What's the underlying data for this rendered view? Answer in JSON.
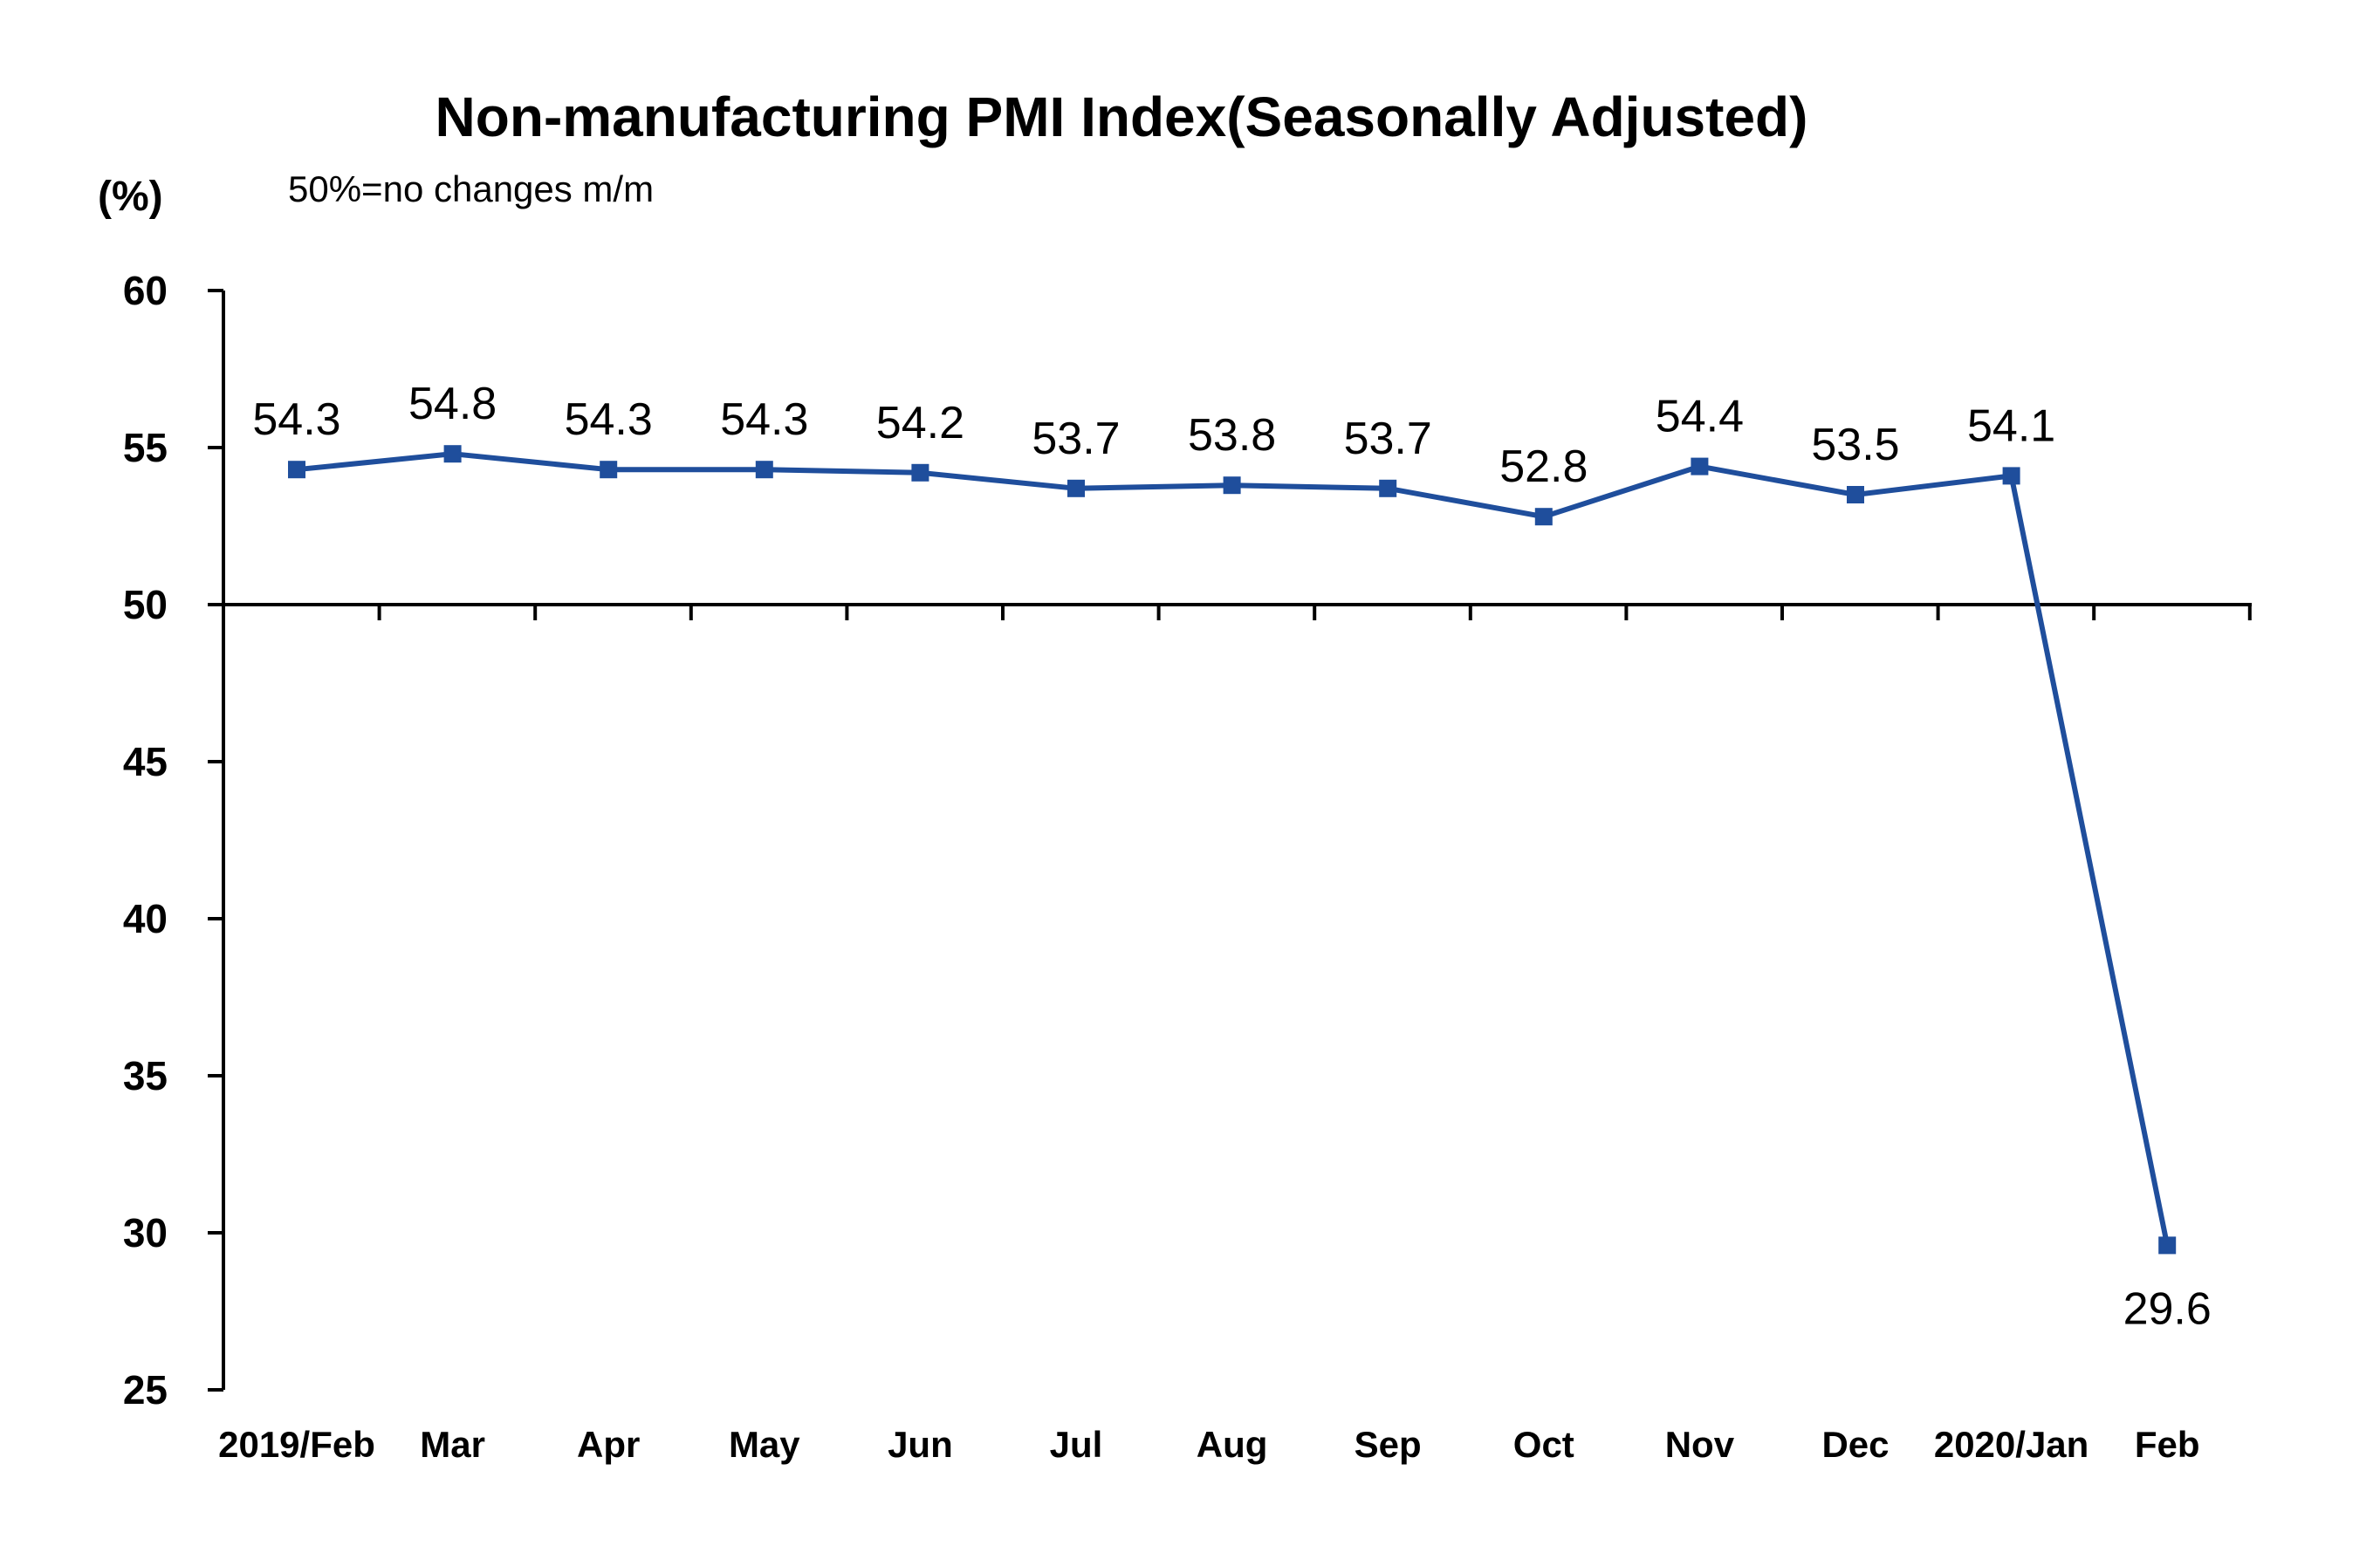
{
  "chart_data": {
    "type": "line",
    "title": "Non-manufacturing PMI Index(Seasonally Adjusted)",
    "subtitle": "50%=no changes  m/m",
    "ylabel": "(%)",
    "xlabel": "",
    "ylim": [
      25,
      60
    ],
    "yticks": [
      25,
      30,
      35,
      40,
      45,
      50,
      55,
      60
    ],
    "baseline": 50,
    "grid": false,
    "legend": "none",
    "categories": [
      "2019/Feb",
      "Mar",
      "Apr",
      "May",
      "Jun",
      "Jul",
      "Aug",
      "Sep",
      "Oct",
      "Nov",
      "Dec",
      "2020/Jan",
      "Feb"
    ],
    "series": [
      {
        "values": [
          54.3,
          54.8,
          54.3,
          54.3,
          54.2,
          53.7,
          53.8,
          53.7,
          52.8,
          54.4,
          53.5,
          54.1,
          29.6
        ],
        "color": "#1f4e9c",
        "data_labels": [
          "54.3",
          "54.8",
          "54.3",
          "54.3",
          "54.2",
          "53.7",
          "53.8",
          "53.7",
          "52.8",
          "54.4",
          "53.5",
          "54.1",
          "29.6"
        ]
      }
    ]
  }
}
